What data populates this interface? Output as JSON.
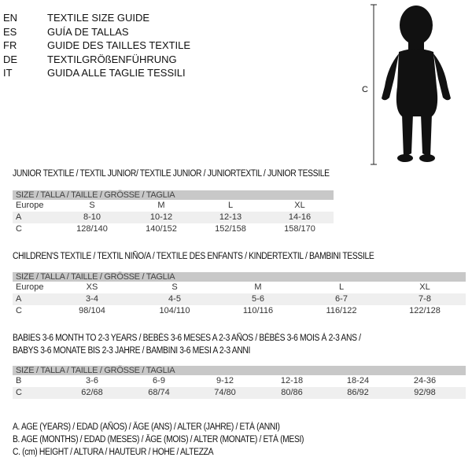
{
  "languages": [
    {
      "code": "EN",
      "text": "TEXTILE SIZE GUIDE"
    },
    {
      "code": "ES",
      "text": "GUÍA DE TALLAS"
    },
    {
      "code": "FR",
      "text": "GUIDE DES TAILLES TEXTILE"
    },
    {
      "code": "DE",
      "text": "TEXTILGRÖßENFÜHRUNG"
    },
    {
      "code": "IT",
      "text": "GUIDA ALLE TAGLIE TESSILI"
    }
  ],
  "figure": {
    "measure_label": "C"
  },
  "junior": {
    "title": "JUNIOR TEXTILE / TEXTIL JUNIOR/ TEXTILE JUNIOR / JUNIORTEXTIL / JUNIOR TESSILE",
    "header": "SIZE / TALLA / TAILLE / GRÖSSE / TAGLIA",
    "rows": [
      {
        "label": "Europe",
        "values": [
          "S",
          "M",
          "L",
          "XL"
        ]
      },
      {
        "label": "A",
        "values": [
          "8-10",
          "10-12",
          "12-13",
          "14-16"
        ]
      },
      {
        "label": "C",
        "values": [
          "128/140",
          "140/152",
          "152/158",
          "158/170"
        ]
      }
    ]
  },
  "children": {
    "title": "CHILDREN'S TEXTILE / TEXTIL NIÑO/A / TEXTILE DES ENFANTS / KINDERTEXTIL / BAMBINI TESSILE",
    "header": "SIZE / TALLA / TAILLE / GRÖSSE / TAGLIA",
    "rows": [
      {
        "label": "Europe",
        "values": [
          "XS",
          "S",
          "M",
          "L",
          "XL"
        ]
      },
      {
        "label": "A",
        "values": [
          "3-4",
          "4-5",
          "5-6",
          "6-7",
          "7-8"
        ]
      },
      {
        "label": "C",
        "values": [
          "98/104",
          "104/110",
          "110/116",
          "116/122",
          "122/128"
        ]
      }
    ]
  },
  "babies": {
    "title1": "BABIES 3-6 MONTH TO 2-3 YEARS / BEBÉS 3-6 MESES A 2-3 AÑOS / BÉBÉS 3-6 MOIS À 2-3 ANS /",
    "title2": "BABYS 3-6 MONATE BIS 2-3 JAHRE / BAMBINI 3-6 MESI A 2-3 ANNI",
    "header": "SIZE / TALLA / TAILLE / GRÖSSE / TAGLIA",
    "rows": [
      {
        "label": "B",
        "values": [
          "3-6",
          "6-9",
          "9-12",
          "12-18",
          "18-24",
          "24-36"
        ]
      },
      {
        "label": "C",
        "values": [
          "62/68",
          "68/74",
          "74/80",
          "80/86",
          "86/92",
          "92/98"
        ]
      }
    ]
  },
  "legend": [
    "A. AGE (YEARS) / EDAD (AÑOS) / ÂGE (ANS) / ALTER (JAHRE) / ETÀ (ANNI)",
    "B. AGE (MONTHS) / EDAD (MESES) / ÂGE (MOIS) / ALTER (MONATE) / ETÀ (MESI)",
    "C. (cm) HEIGHT / ALTURA / HAUTEUR / HÖHE / ALTEZZA"
  ]
}
